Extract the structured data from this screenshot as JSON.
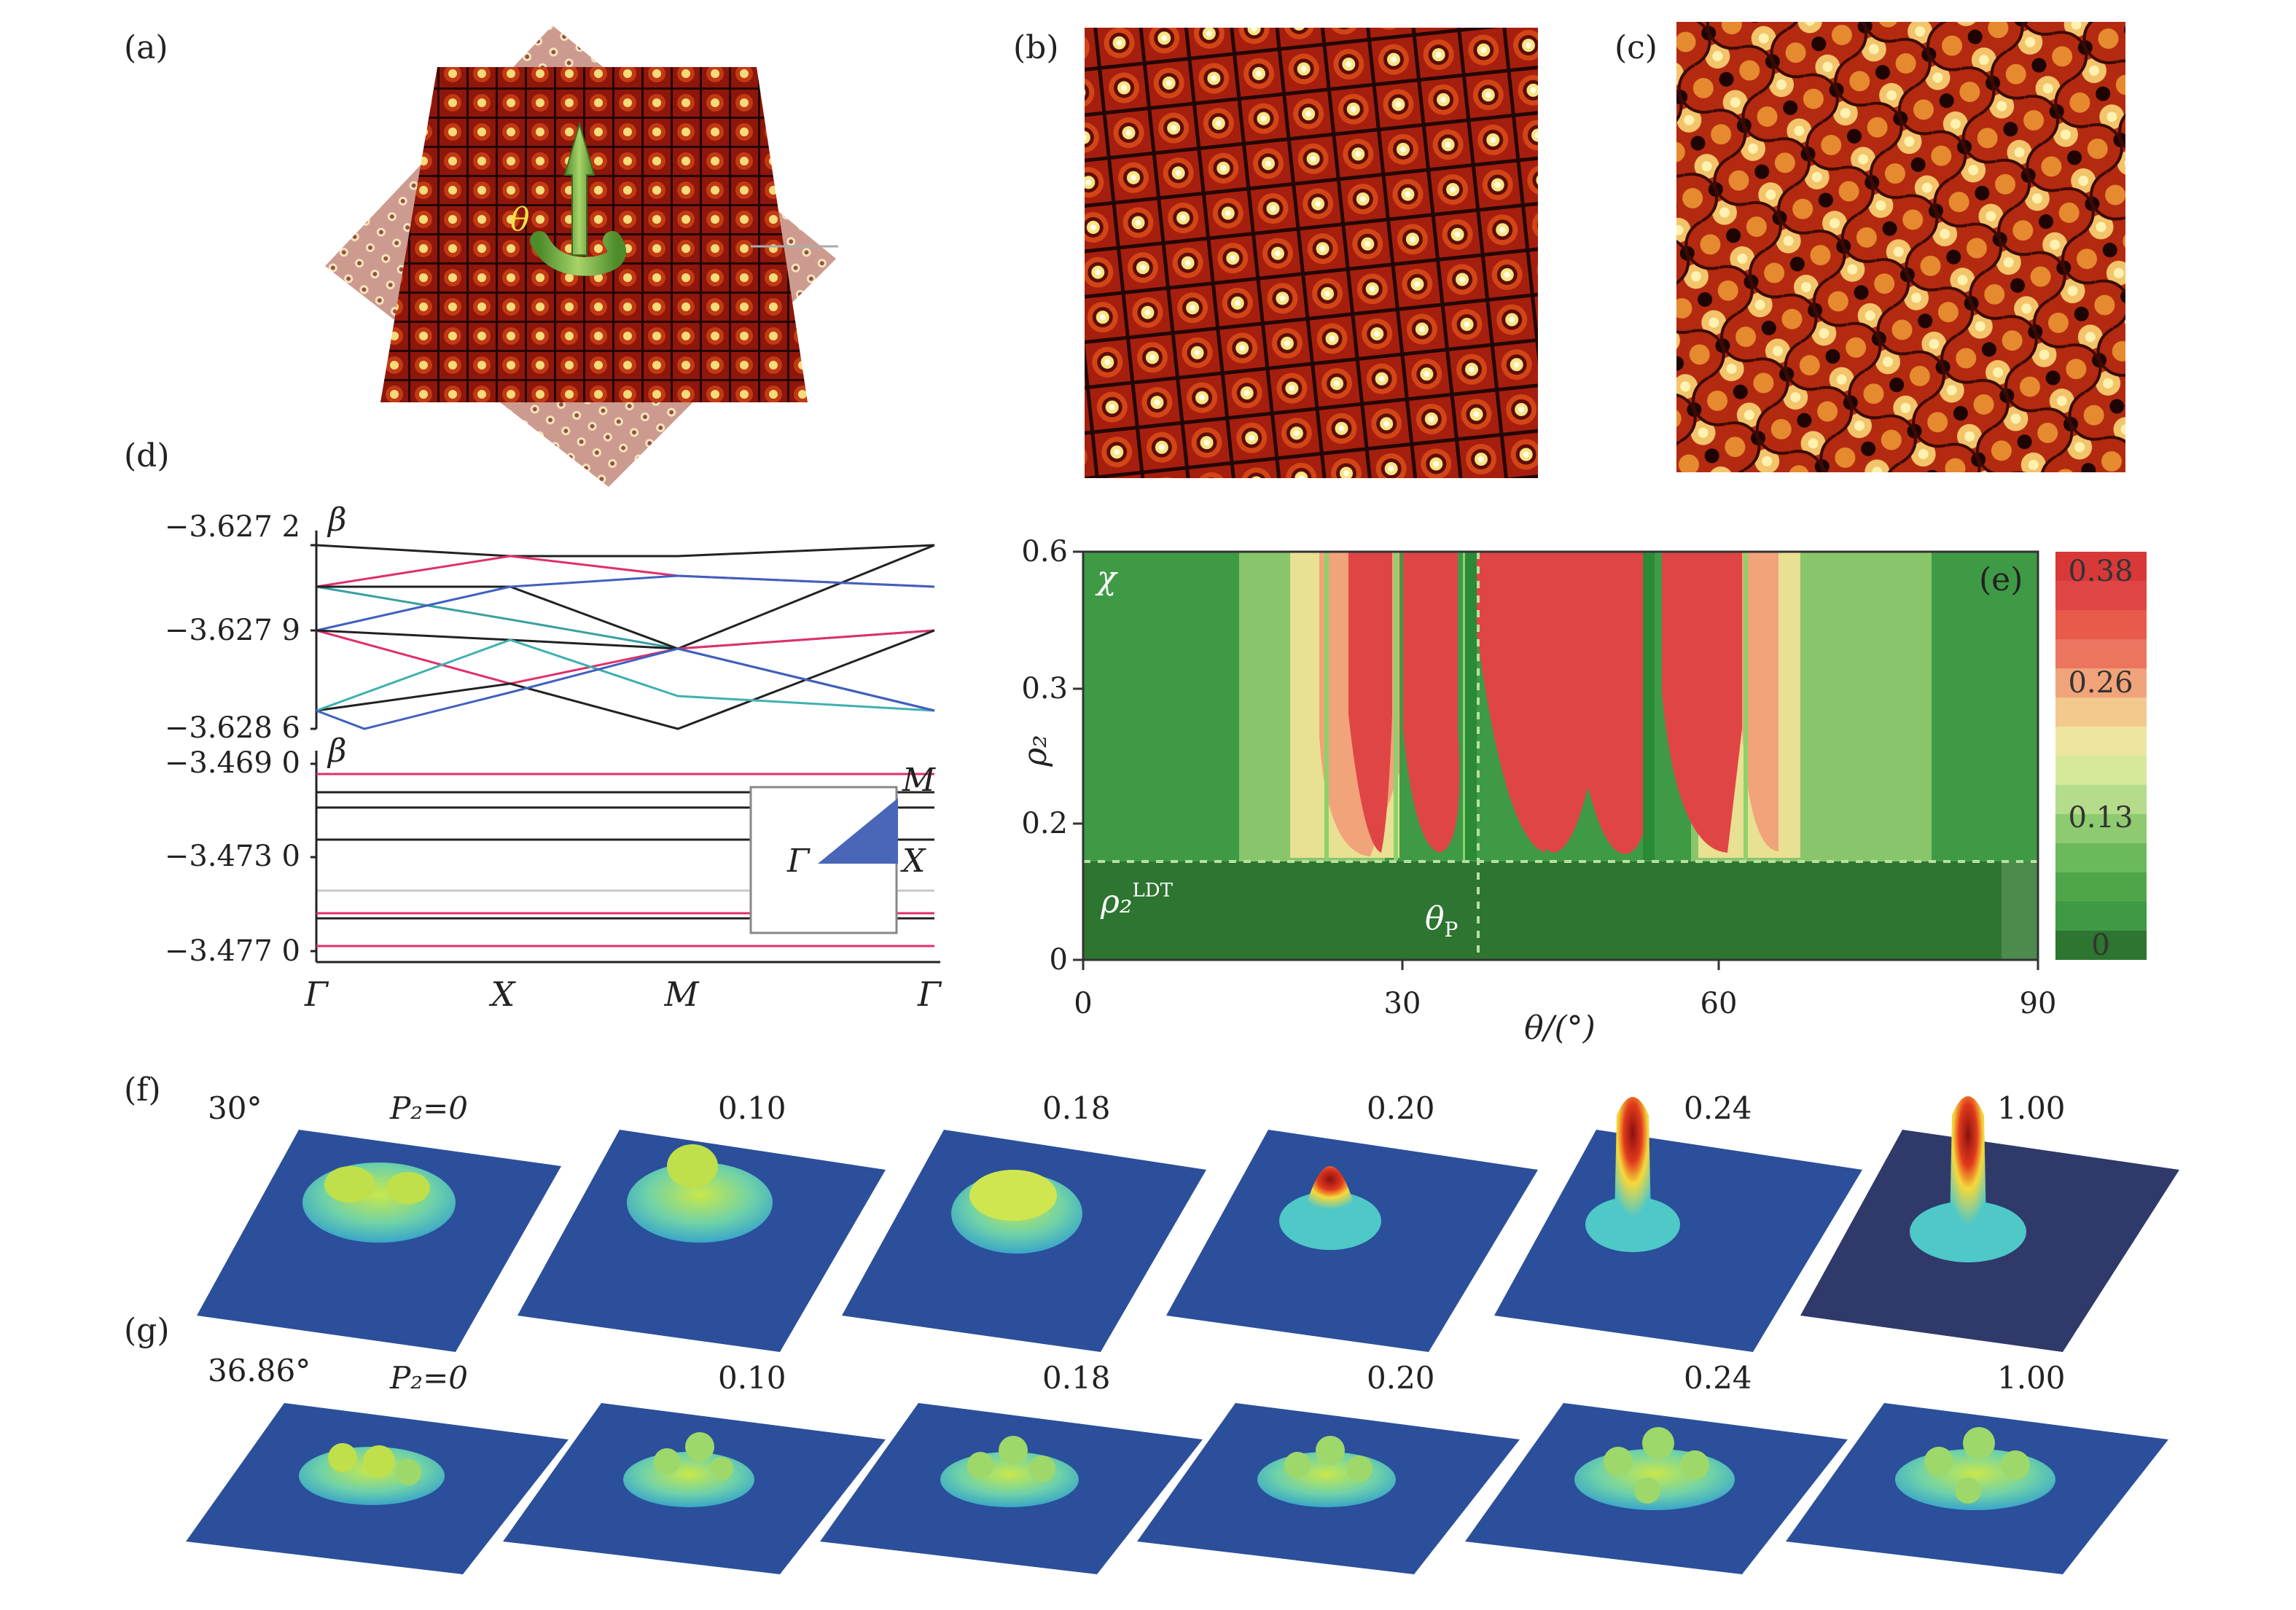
{
  "panel_labels": {
    "a": "(a)",
    "b": "(b)",
    "c": "(c)",
    "d": "(d)",
    "e": "(e)",
    "f": "(f)",
    "g": "(g)"
  },
  "panel_a": {
    "angle_symbol": "θ"
  },
  "panel_d": {
    "upper": {
      "y_symbol": "β",
      "ticks": [
        "−3.627 2",
        "−3.627 9",
        "−3.628 6"
      ]
    },
    "lower": {
      "y_symbol": "β",
      "ticks": [
        "−3.469 0",
        "−3.473 0",
        "−3.477 0"
      ]
    },
    "x_ticks": [
      "Γ",
      "X",
      "M",
      "Γ"
    ],
    "inset": {
      "gamma": "Γ",
      "x": "X",
      "m": "M"
    }
  },
  "panel_e": {
    "corner_symbol": "χ",
    "x_label": "θ/(°)",
    "y_label": "ρ₂",
    "x_ticks": [
      "0",
      "30",
      "60",
      "90"
    ],
    "y_ticks": [
      "0.6",
      "0.3",
      "0.2",
      "0"
    ],
    "threshold_label": "ρ₂",
    "threshold_sup": "LDT",
    "theta_p": "θ",
    "theta_p_sub": "P",
    "colorbar_ticks": [
      "0.38",
      "0.26",
      "0.13",
      "0"
    ]
  },
  "panel_f": {
    "angle": "30°",
    "p_label": "P₂=0",
    "values": [
      "0.10",
      "0.18",
      "0.20",
      "0.24",
      "1.00"
    ]
  },
  "panel_g": {
    "angle": "36.86°",
    "p_label": "P₂=0",
    "values": [
      "0.10",
      "0.18",
      "0.20",
      "0.24",
      "1.00"
    ]
  },
  "colors": {
    "lattice_dark": "#7a1208",
    "lattice_spot": "#f7e37a",
    "map_red": "#e04545",
    "map_green": "#3f9a45",
    "map_dark_green": "#2d7530",
    "surface_blue": "#2b4f9a",
    "line_pink": "#e0306a",
    "line_black": "#222222"
  }
}
